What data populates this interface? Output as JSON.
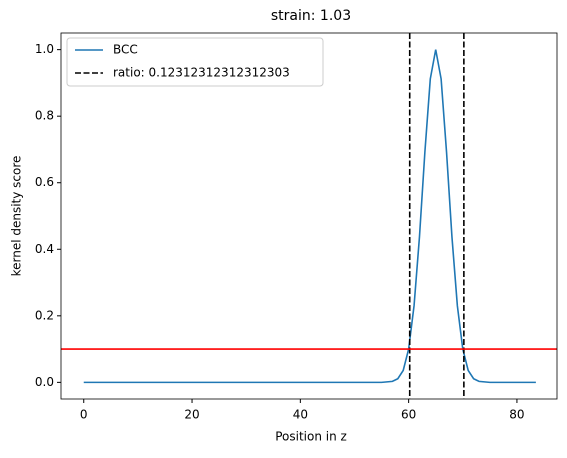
{
  "chart_data": {
    "type": "line",
    "title": "strain: 1.03",
    "xlabel": "Position in z",
    "ylabel": "kernel density score",
    "x": [
      0,
      10,
      20,
      30,
      40,
      50,
      55,
      57,
      58,
      59,
      60,
      61,
      62,
      63,
      64,
      65,
      66,
      67,
      68,
      69,
      70,
      71,
      72,
      73,
      75,
      80,
      83.5
    ],
    "series": [
      {
        "name": "BCC",
        "color": "#1f77b4",
        "values": [
          0,
          0,
          0,
          0,
          0,
          0,
          0,
          0.003,
          0.011,
          0.036,
          0.1,
          0.23,
          0.437,
          0.692,
          0.912,
          1,
          0.912,
          0.692,
          0.437,
          0.23,
          0.1,
          0.036,
          0.011,
          0.003,
          0,
          0,
          0
        ]
      }
    ],
    "vlines": {
      "name": "ratio: 0.12312312312312303",
      "color": "#000000",
      "values": [
        60.2,
        70.2
      ]
    },
    "hline": {
      "color": "#ff0000",
      "value": 0.1
    },
    "xlim": [
      -4.2,
      87.4
    ],
    "ylim": [
      -0.05,
      1.05
    ],
    "xticks": [
      0,
      20,
      40,
      60,
      80
    ],
    "yticks": [
      {
        "value": 0,
        "label": "0.0"
      },
      0.2,
      0.4,
      0.6,
      0.8,
      {
        "value": 1,
        "label": "1.0"
      }
    ],
    "legend": "upper left"
  }
}
